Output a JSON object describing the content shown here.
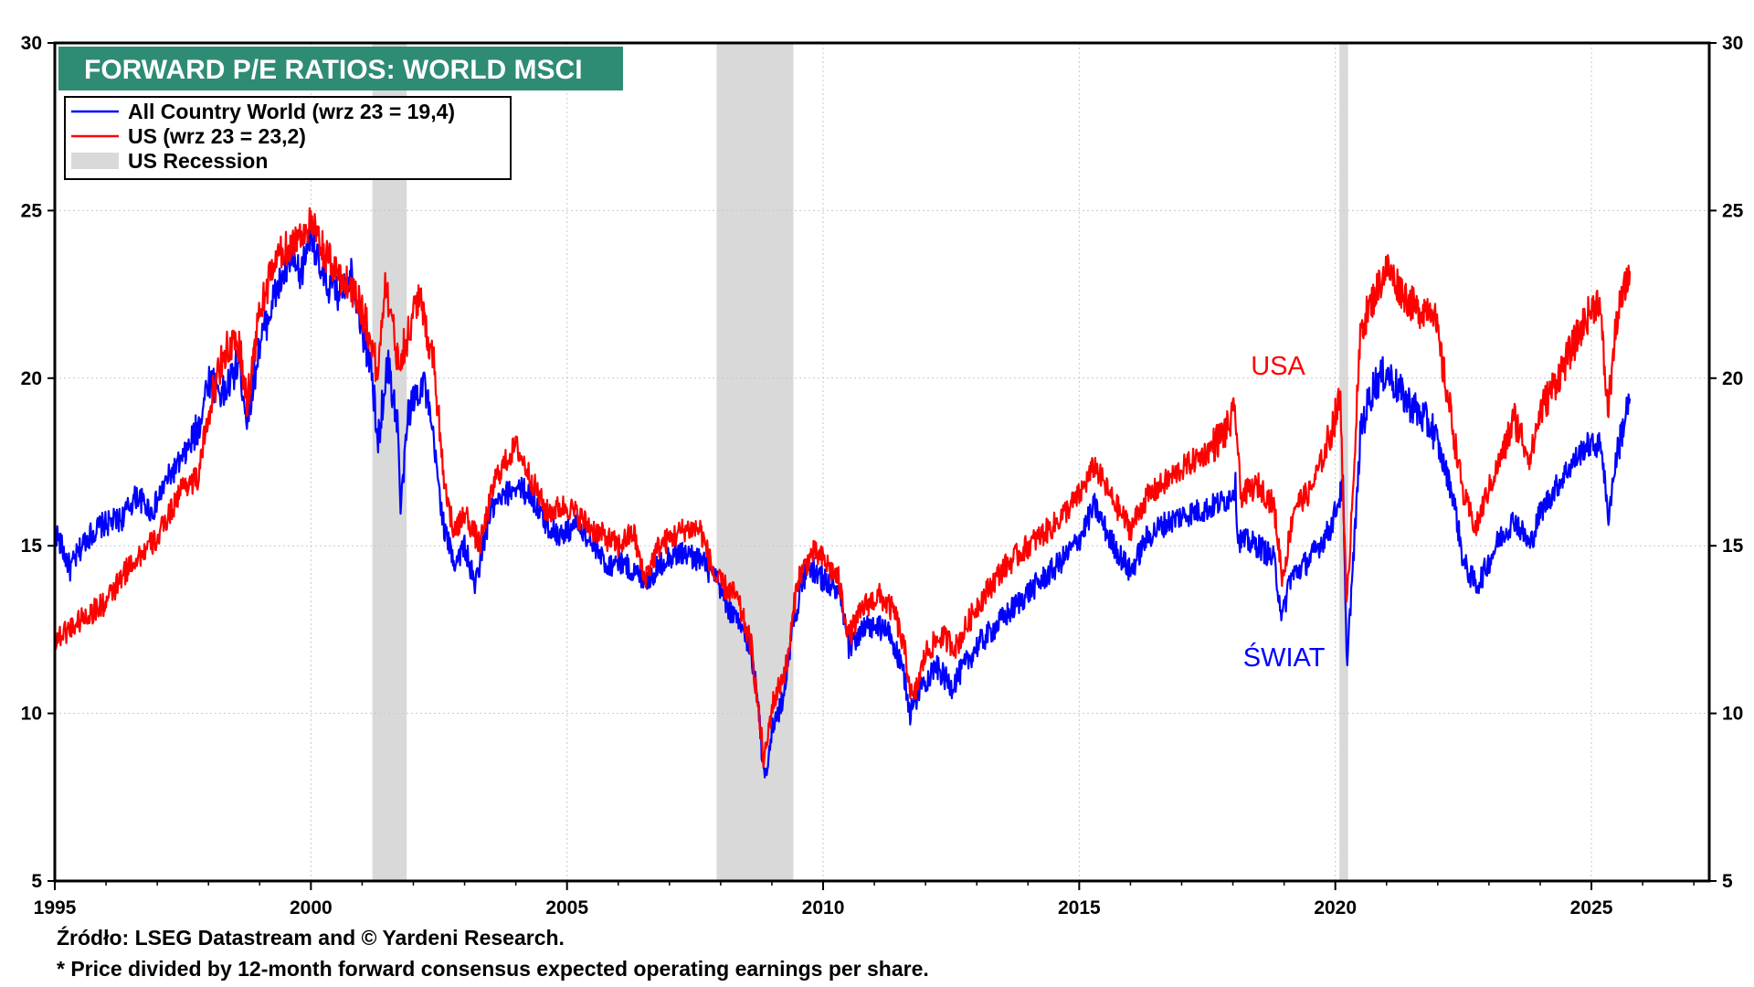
{
  "chart_data": {
    "type": "line",
    "title": "FORWARD P/E RATIOS: WORLD MSCI",
    "xlim": [
      1995,
      2027.3
    ],
    "ylim": [
      5,
      30
    ],
    "x_ticks": [
      1995,
      2000,
      2005,
      2010,
      2015,
      2020,
      2025
    ],
    "y_ticks": [
      5,
      10,
      15,
      20,
      25,
      30
    ],
    "grid": true,
    "legend_position": "top-left",
    "legend": [
      {
        "label": "All Country World (wrz 23 = 19,4)",
        "color": "#0000ff",
        "kind": "line"
      },
      {
        "label": "US (wrz 23 = 23,2)",
        "color": "#ff0000",
        "kind": "line"
      },
      {
        "label": "US Recession",
        "color": "#d9d9d9",
        "kind": "box"
      }
    ],
    "recessions": [
      [
        2001.2,
        2001.87
      ],
      [
        2007.92,
        2009.42
      ],
      [
        2020.08,
        2020.25
      ]
    ],
    "annotations": [
      {
        "text": "USA",
        "x": 2018.35,
        "y": 20.1,
        "color": "#ff0000"
      },
      {
        "text": "ŚWIAT",
        "x": 2018.2,
        "y": 11.4,
        "color": "#0000ff"
      }
    ],
    "series": [
      {
        "name": "All Country World",
        "color": "#0000ff",
        "points": [
          [
            1995.0,
            15.5
          ],
          [
            1995.3,
            14.3
          ],
          [
            1995.6,
            15.2
          ],
          [
            1995.9,
            15.6
          ],
          [
            1996.3,
            15.8
          ],
          [
            1996.6,
            16.5
          ],
          [
            1996.9,
            16.0
          ],
          [
            1997.2,
            17.0
          ],
          [
            1997.5,
            17.6
          ],
          [
            1997.8,
            18.5
          ],
          [
            1998.0,
            20.0
          ],
          [
            1998.3,
            19.5
          ],
          [
            1998.6,
            20.5
          ],
          [
            1998.75,
            18.8
          ],
          [
            1999.0,
            21.0
          ],
          [
            1999.3,
            22.5
          ],
          [
            1999.6,
            23.5
          ],
          [
            1999.8,
            23.0
          ],
          [
            2000.0,
            24.5
          ],
          [
            2000.2,
            23.0
          ],
          [
            2000.5,
            22.5
          ],
          [
            2000.8,
            23.2
          ],
          [
            2001.0,
            21.5
          ],
          [
            2001.2,
            20.0
          ],
          [
            2001.3,
            18.0
          ],
          [
            2001.5,
            20.5
          ],
          [
            2001.7,
            18.5
          ],
          [
            2001.75,
            16.0
          ],
          [
            2001.9,
            19.0
          ],
          [
            2002.2,
            20.0
          ],
          [
            2002.4,
            18.0
          ],
          [
            2002.6,
            15.5
          ],
          [
            2002.8,
            14.5
          ],
          [
            2003.0,
            15.0
          ],
          [
            2003.2,
            13.8
          ],
          [
            2003.5,
            16.0
          ],
          [
            2003.8,
            16.5
          ],
          [
            2004.0,
            16.8
          ],
          [
            2004.3,
            16.5
          ],
          [
            2004.6,
            15.6
          ],
          [
            2004.9,
            15.3
          ],
          [
            2005.2,
            15.7
          ],
          [
            2005.5,
            15.0
          ],
          [
            2005.8,
            14.4
          ],
          [
            2006.0,
            14.6
          ],
          [
            2006.3,
            14.2
          ],
          [
            2006.6,
            14.0
          ],
          [
            2006.9,
            14.6
          ],
          [
            2007.2,
            14.8
          ],
          [
            2007.6,
            14.6
          ],
          [
            2007.9,
            14.0
          ],
          [
            2008.2,
            13.0
          ],
          [
            2008.5,
            12.3
          ],
          [
            2008.7,
            11.0
          ],
          [
            2008.85,
            8.0
          ],
          [
            2009.0,
            9.5
          ],
          [
            2009.2,
            10.3
          ],
          [
            2009.4,
            12.5
          ],
          [
            2009.6,
            14.0
          ],
          [
            2009.8,
            14.3
          ],
          [
            2010.0,
            14.0
          ],
          [
            2010.3,
            13.6
          ],
          [
            2010.5,
            12.0
          ],
          [
            2010.8,
            12.5
          ],
          [
            2011.0,
            12.6
          ],
          [
            2011.3,
            12.4
          ],
          [
            2011.6,
            11.0
          ],
          [
            2011.7,
            10.0
          ],
          [
            2011.9,
            10.8
          ],
          [
            2012.2,
            11.4
          ],
          [
            2012.5,
            10.8
          ],
          [
            2012.8,
            11.5
          ],
          [
            2013.0,
            12.0
          ],
          [
            2013.5,
            12.8
          ],
          [
            2014.0,
            13.6
          ],
          [
            2014.5,
            14.3
          ],
          [
            2014.8,
            14.8
          ],
          [
            2015.0,
            15.2
          ],
          [
            2015.3,
            16.2
          ],
          [
            2015.6,
            15.2
          ],
          [
            2016.0,
            14.2
          ],
          [
            2016.3,
            15.2
          ],
          [
            2016.6,
            15.6
          ],
          [
            2017.0,
            15.9
          ],
          [
            2017.5,
            16.1
          ],
          [
            2017.9,
            16.4
          ],
          [
            2018.05,
            16.8
          ],
          [
            2018.1,
            15.2
          ],
          [
            2018.5,
            15.0
          ],
          [
            2018.8,
            14.6
          ],
          [
            2018.97,
            12.8
          ],
          [
            2019.1,
            14.0
          ],
          [
            2019.5,
            14.6
          ],
          [
            2019.9,
            15.5
          ],
          [
            2020.15,
            16.8
          ],
          [
            2020.22,
            11.5
          ],
          [
            2020.35,
            14.5
          ],
          [
            2020.5,
            18.5
          ],
          [
            2020.75,
            19.8
          ],
          [
            2021.0,
            20.2
          ],
          [
            2021.3,
            19.5
          ],
          [
            2021.6,
            19.0
          ],
          [
            2021.9,
            18.5
          ],
          [
            2022.1,
            17.5
          ],
          [
            2022.3,
            16.5
          ],
          [
            2022.5,
            14.5
          ],
          [
            2022.75,
            13.8
          ],
          [
            2022.9,
            14.2
          ],
          [
            2023.2,
            15.2
          ],
          [
            2023.5,
            15.8
          ],
          [
            2023.8,
            15.0
          ],
          [
            2024.0,
            16.0
          ],
          [
            2024.5,
            17.2
          ],
          [
            2024.9,
            18.0
          ],
          [
            2025.2,
            18.0
          ],
          [
            2025.32,
            15.8
          ],
          [
            2025.5,
            17.8
          ],
          [
            2025.75,
            19.4
          ]
        ]
      },
      {
        "name": "US",
        "color": "#ff0000",
        "points": [
          [
            1995.0,
            12.2
          ],
          [
            1995.5,
            12.8
          ],
          [
            1996.0,
            13.3
          ],
          [
            1996.5,
            14.5
          ],
          [
            1997.0,
            15.2
          ],
          [
            1997.5,
            16.8
          ],
          [
            1997.8,
            17.0
          ],
          [
            1998.0,
            19.0
          ],
          [
            1998.3,
            20.8
          ],
          [
            1998.6,
            21.0
          ],
          [
            1998.75,
            19.2
          ],
          [
            1999.0,
            22.0
          ],
          [
            1999.3,
            23.5
          ],
          [
            1999.6,
            24.0
          ],
          [
            2000.0,
            24.6
          ],
          [
            2000.3,
            23.6
          ],
          [
            2000.6,
            23.0
          ],
          [
            2000.9,
            22.5
          ],
          [
            2001.2,
            21.0
          ],
          [
            2001.3,
            20.0
          ],
          [
            2001.45,
            23.0
          ],
          [
            2001.7,
            20.5
          ],
          [
            2001.9,
            21.3
          ],
          [
            2002.1,
            22.5
          ],
          [
            2002.4,
            20.5
          ],
          [
            2002.6,
            17.0
          ],
          [
            2002.8,
            15.3
          ],
          [
            2003.0,
            16.0
          ],
          [
            2003.3,
            15.0
          ],
          [
            2003.6,
            17.0
          ],
          [
            2004.0,
            18.0
          ],
          [
            2004.3,
            17.0
          ],
          [
            2004.6,
            16.0
          ],
          [
            2005.0,
            16.2
          ],
          [
            2005.5,
            15.5
          ],
          [
            2006.0,
            15.0
          ],
          [
            2006.3,
            15.4
          ],
          [
            2006.5,
            14.0
          ],
          [
            2006.8,
            15.0
          ],
          [
            2007.3,
            15.5
          ],
          [
            2007.6,
            15.5
          ],
          [
            2007.9,
            14.0
          ],
          [
            2008.3,
            13.5
          ],
          [
            2008.6,
            12.0
          ],
          [
            2008.85,
            8.5
          ],
          [
            2009.0,
            10.2
          ],
          [
            2009.3,
            11.5
          ],
          [
            2009.5,
            14.0
          ],
          [
            2009.8,
            14.8
          ],
          [
            2010.0,
            14.6
          ],
          [
            2010.3,
            14.0
          ],
          [
            2010.5,
            12.3
          ],
          [
            2010.8,
            13.2
          ],
          [
            2011.1,
            13.5
          ],
          [
            2011.4,
            13.0
          ],
          [
            2011.6,
            11.8
          ],
          [
            2011.75,
            10.3
          ],
          [
            2012.0,
            11.8
          ],
          [
            2012.3,
            12.3
          ],
          [
            2012.6,
            12.0
          ],
          [
            2013.0,
            13.2
          ],
          [
            2013.5,
            14.3
          ],
          [
            2014.0,
            15.0
          ],
          [
            2014.5,
            15.6
          ],
          [
            2015.0,
            16.5
          ],
          [
            2015.3,
            17.4
          ],
          [
            2015.6,
            16.5
          ],
          [
            2016.0,
            15.5
          ],
          [
            2016.3,
            16.4
          ],
          [
            2016.6,
            16.8
          ],
          [
            2017.0,
            17.3
          ],
          [
            2017.5,
            17.8
          ],
          [
            2017.9,
            18.5
          ],
          [
            2018.05,
            19.0
          ],
          [
            2018.15,
            16.5
          ],
          [
            2018.5,
            16.8
          ],
          [
            2018.8,
            16.2
          ],
          [
            2018.97,
            14.0
          ],
          [
            2019.2,
            16.2
          ],
          [
            2019.5,
            16.6
          ],
          [
            2019.8,
            17.8
          ],
          [
            2020.1,
            19.4
          ],
          [
            2020.22,
            13.0
          ],
          [
            2020.35,
            17.0
          ],
          [
            2020.5,
            21.5
          ],
          [
            2020.8,
            22.6
          ],
          [
            2021.0,
            23.3
          ],
          [
            2021.3,
            22.6
          ],
          [
            2021.6,
            22.0
          ],
          [
            2021.9,
            22.2
          ],
          [
            2022.1,
            20.3
          ],
          [
            2022.3,
            18.5
          ],
          [
            2022.5,
            16.5
          ],
          [
            2022.75,
            15.5
          ],
          [
            2022.9,
            16.3
          ],
          [
            2023.2,
            17.5
          ],
          [
            2023.5,
            18.8
          ],
          [
            2023.8,
            17.6
          ],
          [
            2024.0,
            19.0
          ],
          [
            2024.5,
            20.5
          ],
          [
            2024.9,
            21.8
          ],
          [
            2025.15,
            22.4
          ],
          [
            2025.32,
            19.0
          ],
          [
            2025.5,
            21.8
          ],
          [
            2025.75,
            23.2
          ]
        ]
      }
    ]
  },
  "footer": {
    "source": "Źródło: LSEG Datastream and © Yardeni Research.",
    "note": "* Price divided by 12-month forward consensus expected operating earnings per share."
  }
}
